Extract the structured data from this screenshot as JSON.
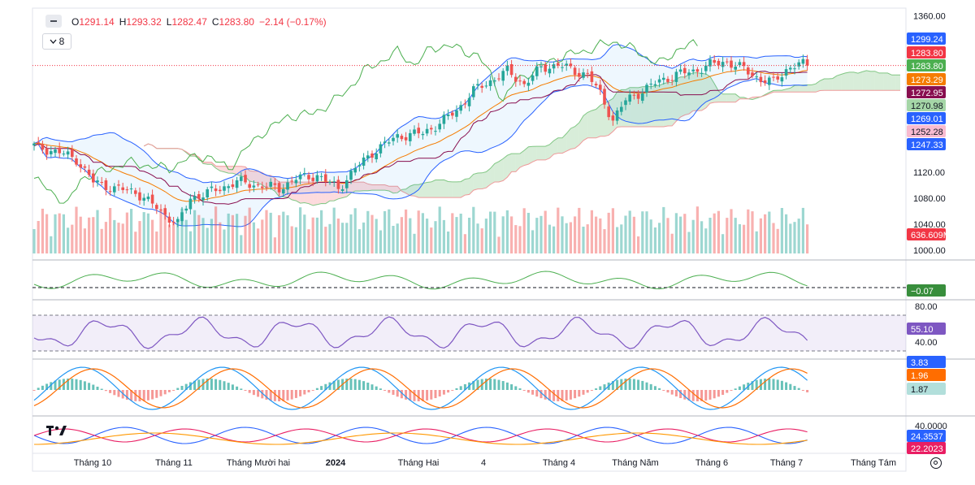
{
  "header": {
    "open_label": "O",
    "open": "1291.14",
    "high_label": "H",
    "high": "1293.32",
    "low_label": "L",
    "low": "1282.47",
    "close_label": "C",
    "close": "1283.80",
    "change": "−2.14 (−0.17%)",
    "indicator_button": "8"
  },
  "colors": {
    "up": "#26a69a",
    "down": "#ef5350",
    "bb": "#2962ff",
    "ichi_green": "#4caf50",
    "ichi_red": "#f23645",
    "ema": "#f57c00",
    "kijun": "#880e4f",
    "rsi": "#7e57c2",
    "macd": "#2196f3",
    "signal": "#ff6d00",
    "dmi_plus": "#2962ff",
    "dmi_minus": "#e91e63",
    "adx": "#ff9800"
  },
  "chart_data": [
    {
      "type": "candlestick",
      "title": "",
      "xlabel": "",
      "ylabel": "",
      "ylim": [
        995,
        1362
      ],
      "y_ticks": [
        "1360.00",
        "1120.00",
        "1080.00",
        "1040.00",
        "1000.00"
      ],
      "x_tick_labels": [
        "Tháng 10",
        "Tháng 11",
        "Tháng Mười hai",
        "2024",
        "Tháng Hai",
        "4",
        "Tháng 4",
        "Tháng Năm",
        "Tháng 6",
        "Tháng 7",
        "Tháng Tám"
      ],
      "price_tags": [
        {
          "label": "1299.24",
          "bg": "#2962ff",
          "fg": "#ffffff"
        },
        {
          "label": "1283.80",
          "bg": "#f23645",
          "fg": "#ffffff"
        },
        {
          "label": "1283.80",
          "bg": "#4caf50",
          "fg": "#ffffff"
        },
        {
          "label": "1273.29",
          "bg": "#f57c00",
          "fg": "#ffffff"
        },
        {
          "label": "1272.95",
          "bg": "#880e4f",
          "fg": "#ffffff"
        },
        {
          "label": "1270.98",
          "bg": "#a5d6a7",
          "fg": "#131722"
        },
        {
          "label": "1269.01",
          "bg": "#2962ff",
          "fg": "#ffffff"
        },
        {
          "label": "1252.28",
          "bg": "#f8bbd0",
          "fg": "#131722"
        },
        {
          "label": "1247.33",
          "bg": "#2962ff",
          "fg": "#ffffff"
        }
      ],
      "volume_tag": {
        "label": "636.609M",
        "bg": "#f23645",
        "fg": "#ffffff"
      },
      "last_close": 1283.8,
      "series_path": [
        {
          "i": 0,
          "c": 1160
        },
        {
          "i": 6,
          "c": 1150
        },
        {
          "i": 10,
          "c": 1140
        },
        {
          "i": 14,
          "c": 1105
        },
        {
          "i": 19,
          "c": 1095
        },
        {
          "i": 24,
          "c": 1090
        },
        {
          "i": 30,
          "c": 1060
        },
        {
          "i": 34,
          "c": 1040
        },
        {
          "i": 37,
          "c": 1080
        },
        {
          "i": 42,
          "c": 1090
        },
        {
          "i": 48,
          "c": 1105
        },
        {
          "i": 53,
          "c": 1100
        },
        {
          "i": 58,
          "c": 1095
        },
        {
          "i": 62,
          "c": 1110
        },
        {
          "i": 67,
          "c": 1115
        },
        {
          "i": 72,
          "c": 1095
        },
        {
          "i": 76,
          "c": 1125
        },
        {
          "i": 80,
          "c": 1150
        },
        {
          "i": 86,
          "c": 1175
        },
        {
          "i": 92,
          "c": 1180
        },
        {
          "i": 96,
          "c": 1195
        },
        {
          "i": 100,
          "c": 1215
        },
        {
          "i": 104,
          "c": 1245
        },
        {
          "i": 108,
          "c": 1260
        },
        {
          "i": 112,
          "c": 1275
        },
        {
          "i": 116,
          "c": 1255
        },
        {
          "i": 120,
          "c": 1280
        },
        {
          "i": 124,
          "c": 1285
        },
        {
          "i": 128,
          "c": 1275
        },
        {
          "i": 131,
          "c": 1270
        },
        {
          "i": 134,
          "c": 1240
        },
        {
          "i": 137,
          "c": 1200
        },
        {
          "i": 140,
          "c": 1230
        },
        {
          "i": 144,
          "c": 1245
        },
        {
          "i": 148,
          "c": 1260
        },
        {
          "i": 152,
          "c": 1270
        },
        {
          "i": 156,
          "c": 1275
        },
        {
          "i": 160,
          "c": 1285
        },
        {
          "i": 164,
          "c": 1290
        },
        {
          "i": 168,
          "c": 1278
        },
        {
          "i": 172,
          "c": 1262
        },
        {
          "i": 175,
          "c": 1258
        },
        {
          "i": 178,
          "c": 1278
        },
        {
          "i": 181,
          "c": 1286
        },
        {
          "i": 183,
          "c": 1283.8
        }
      ]
    },
    {
      "type": "line",
      "title": "",
      "panel": "oscillator",
      "last_value_label": "−0.07"
    },
    {
      "type": "line",
      "title": "",
      "panel": "rsi",
      "y_ticks": [
        "80.00",
        "40.00"
      ],
      "bands": [
        70,
        30
      ],
      "last_value_label": "55.10"
    },
    {
      "type": "bar",
      "title": "",
      "panel": "macd",
      "tags": [
        {
          "label": "3.83",
          "bg": "#2962ff",
          "fg": "#ffffff"
        },
        {
          "label": "1.96",
          "bg": "#ff6d00",
          "fg": "#ffffff"
        },
        {
          "label": "1.87",
          "bg": "#b2dfdb",
          "fg": "#131722"
        }
      ]
    },
    {
      "type": "line",
      "title": "",
      "panel": "dmi",
      "y_ticks": [
        "40.0000"
      ],
      "tags": [
        {
          "label": "24.3537",
          "bg": "#2962ff",
          "fg": "#ffffff"
        },
        {
          "label": "22.2023",
          "bg": "#e91e63",
          "fg": "#ffffff"
        }
      ]
    }
  ]
}
